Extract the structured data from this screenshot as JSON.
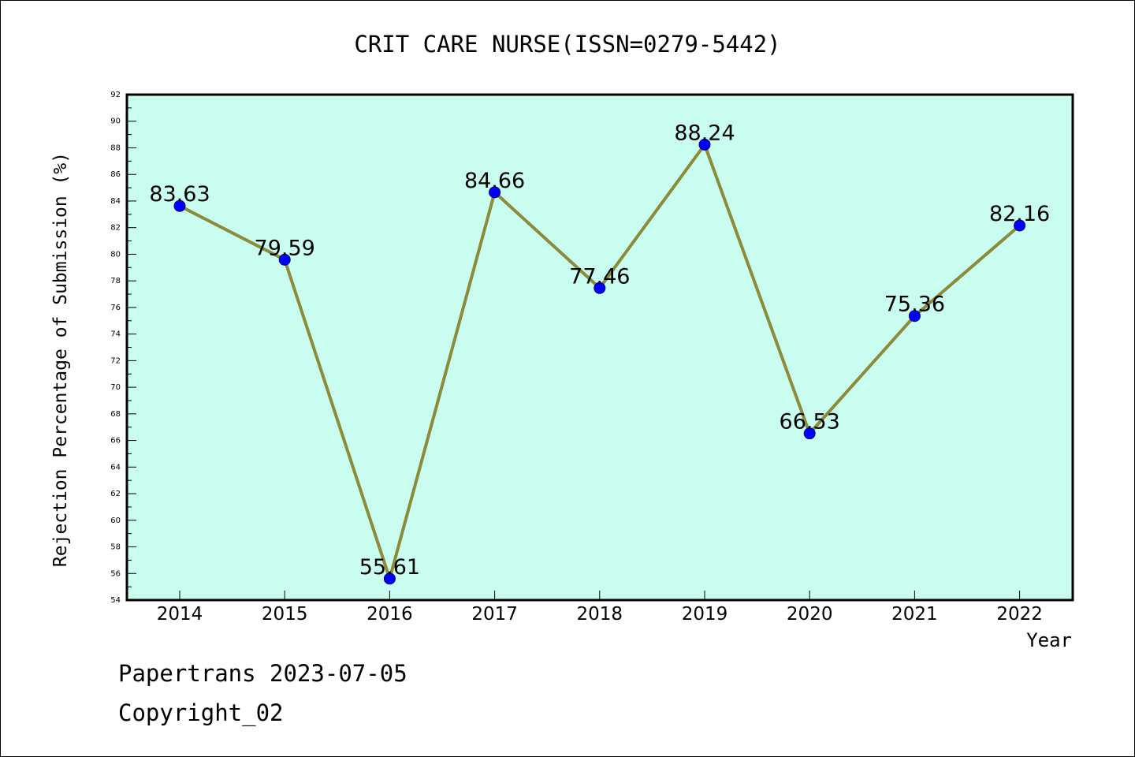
{
  "chart_data": {
    "type": "line",
    "title": "CRIT CARE NURSE(ISSN=0279-5442)",
    "xlabel": "Year",
    "ylabel": "Rejection Percentage of Submission (%)",
    "categories": [
      "2014",
      "2015",
      "2016",
      "2017",
      "2018",
      "2019",
      "2020",
      "2021",
      "2022"
    ],
    "values": [
      83.63,
      79.59,
      55.61,
      84.66,
      77.46,
      88.24,
      66.53,
      75.36,
      82.16
    ],
    "value_labels": [
      "83.63",
      "79.59",
      "55.61",
      "84.66",
      "77.46",
      "88.24",
      "66.53",
      "75.36",
      "82.16"
    ],
    "ylim": [
      54,
      92
    ],
    "yticks": [
      "54",
      "56",
      "58",
      "60",
      "62",
      "64",
      "66",
      "68",
      "70",
      "72",
      "74",
      "76",
      "78",
      "80",
      "82",
      "84",
      "86",
      "88",
      "90",
      "92"
    ],
    "grid": false,
    "colors": {
      "plot_background": "#c8fdf0",
      "line": "#8b8b3a",
      "marker": "#0000ff"
    }
  },
  "footer": {
    "line1": "Papertrans 2023-07-05",
    "line2": "Copyright_02"
  }
}
